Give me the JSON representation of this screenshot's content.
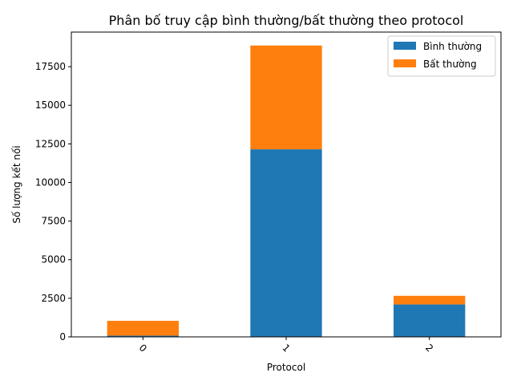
{
  "chart_data": {
    "type": "bar",
    "stacked": true,
    "title": "Phân bố truy cập bình thường/bất thường theo protocol",
    "xlabel": "Protocol",
    "ylabel": "Số lượng kết nối",
    "categories": [
      "0",
      "1",
      "2"
    ],
    "series": [
      {
        "name": "Bình thường",
        "color": "#1f77b4",
        "values": [
          80,
          12150,
          2100
        ]
      },
      {
        "name": "Bất thường",
        "color": "#ff7f0e",
        "values": [
          960,
          6720,
          560
        ]
      }
    ],
    "ylim": [
      0,
      19740
    ],
    "yticks": [
      0,
      2500,
      5000,
      7500,
      10000,
      12500,
      15000,
      17500
    ],
    "ytick_labels": [
      "0",
      "2500",
      "5000",
      "7500",
      "10000",
      "12500",
      "15000",
      "17500"
    ],
    "legend_position": "top-right",
    "grid": false
  }
}
